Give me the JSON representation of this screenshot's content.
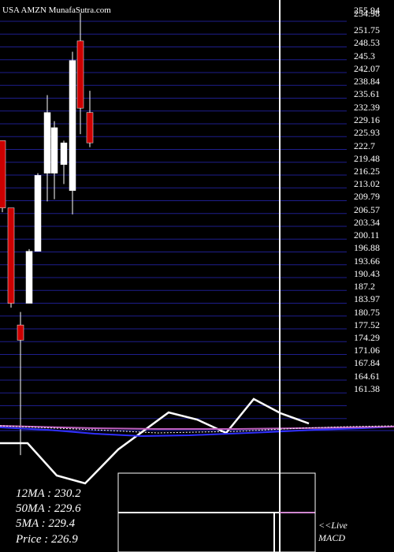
{
  "title": "USA AMZN MunafaSutra.com",
  "chart_data": {
    "type": "candlestick",
    "title": "USA AMZN MunafaSutra.com",
    "price_axis_ticks": [
      "255.94",
      "254.98",
      "251.75",
      "248.53",
      "245.3",
      "242.07",
      "238.84",
      "235.61",
      "232.39",
      "229.16",
      "225.93",
      "222.7",
      "219.48",
      "216.25",
      "213.02",
      "209.79",
      "206.57",
      "203.34",
      "200.11",
      "196.88",
      "193.66",
      "190.43",
      "187.2",
      "183.97",
      "180.75",
      "177.52",
      "174.29",
      "171.06",
      "167.84",
      "164.61",
      "161.38"
    ],
    "ylim": [
      161.38,
      255.94
    ],
    "candles": [
      {
        "open": 225.5,
        "high": 225.5,
        "low": 209.0,
        "close": 210.0,
        "color": "red"
      },
      {
        "open": 210.0,
        "high": 210.0,
        "low": 187.0,
        "close": 188.0,
        "color": "red"
      },
      {
        "open": 183.0,
        "high": 186.0,
        "low": 153.0,
        "close": 179.5,
        "color": "red"
      },
      {
        "open": 188.0,
        "high": 200.5,
        "low": 188.0,
        "close": 200.0,
        "color": "white"
      },
      {
        "open": 200.0,
        "high": 218.0,
        "low": 200.0,
        "close": 217.5,
        "color": "white"
      },
      {
        "open": 218.0,
        "high": 236.0,
        "low": 211.5,
        "close": 232.0,
        "color": "white"
      },
      {
        "open": 218.0,
        "high": 230.0,
        "low": 212.0,
        "close": 228.5,
        "color": "white"
      },
      {
        "open": 220.0,
        "high": 225.5,
        "low": 215.5,
        "close": 225.0,
        "color": "white"
      },
      {
        "open": 214.0,
        "high": 246.0,
        "low": 208.5,
        "close": 244.0,
        "color": "white"
      },
      {
        "open": 248.5,
        "high": 255.0,
        "low": 227.0,
        "close": 233.0,
        "color": "red"
      },
      {
        "open": 232.0,
        "high": 237.0,
        "low": 224.0,
        "close": 225.0,
        "color": "red"
      }
    ],
    "stats": {
      "ma12": "12MA : 230.2",
      "ma50": "50MA : 229.6",
      "ma5": "5MA : 229.4",
      "price": "Price   : 226.9"
    },
    "macd_label_1": "<<Live",
    "macd_label_2": "MACD",
    "colors": {
      "background": "#000000",
      "grid": "#1e1e8c",
      "bull": "#ffffff",
      "bear": "#cc0000",
      "ma_line": "#3030ff",
      "signal_line": "#c060c0"
    }
  }
}
